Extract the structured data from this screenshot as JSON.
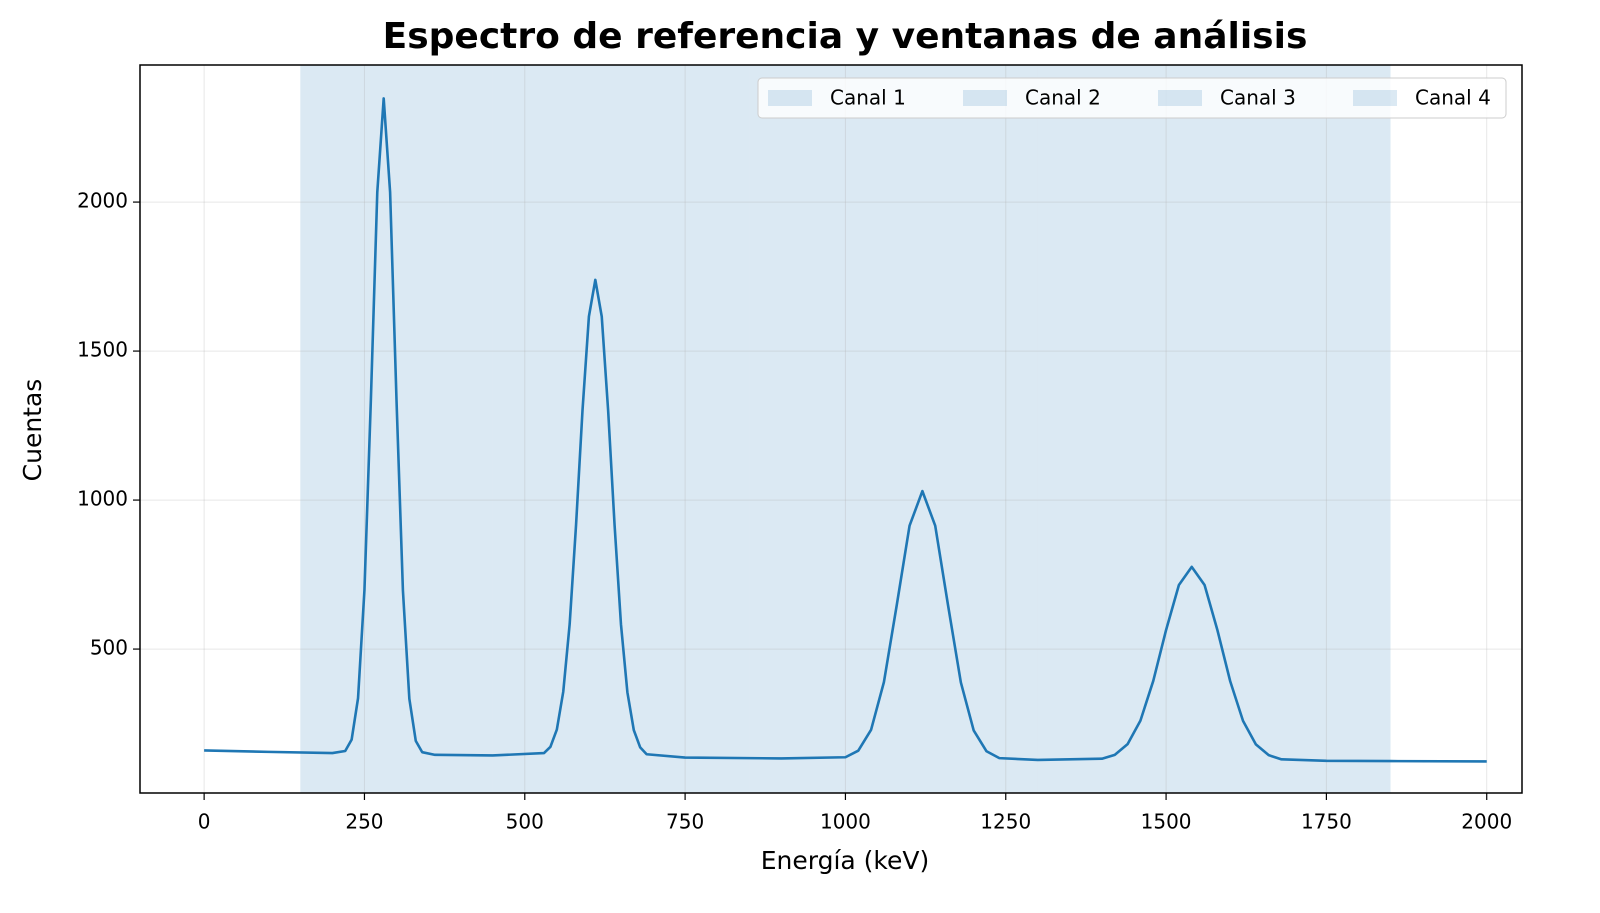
{
  "chart_data": {
    "type": "line",
    "title": "Espectro de referencia y ventanas de análisis",
    "x_label": "Energía (keV)",
    "y_label": "Cuentas",
    "x": [
      0,
      100,
      200,
      220,
      230,
      240,
      250,
      260,
      270,
      280,
      290,
      300,
      310,
      320,
      330,
      340,
      360,
      450,
      530,
      540,
      550,
      560,
      570,
      580,
      590,
      600,
      610,
      620,
      630,
      640,
      650,
      660,
      670,
      680,
      690,
      750,
      900,
      1000,
      1020,
      1040,
      1060,
      1080,
      1100,
      1120,
      1140,
      1160,
      1180,
      1200,
      1220,
      1240,
      1300,
      1400,
      1420,
      1440,
      1460,
      1480,
      1500,
      1520,
      1540,
      1560,
      1580,
      1600,
      1620,
      1640,
      1660,
      1680,
      1750,
      1850,
      2000
    ],
    "values": [
      160,
      155,
      151,
      158,
      196,
      335,
      698,
      1336,
      2033,
      2348,
      2033,
      1334,
      696,
      333,
      192,
      154,
      145,
      143,
      151,
      172,
      230,
      357,
      584,
      918,
      1301,
      1616,
      1739,
      1616,
      1300,
      917,
      583,
      355,
      228,
      170,
      147,
      136,
      133,
      137,
      159,
      229,
      389,
      647,
      914,
      1030,
      914,
      647,
      388,
      227,
      157,
      134,
      128,
      132,
      145,
      181,
      260,
      393,
      564,
      715,
      776,
      715,
      564,
      392,
      259,
      180,
      144,
      130,
      125,
      124,
      123
    ],
    "color": "#1f77b4",
    "spans": [
      {
        "name": "Canal 1",
        "start": 150,
        "end": 450
      },
      {
        "name": "Canal 2",
        "start": 450,
        "end": 850
      },
      {
        "name": "Canal 3",
        "start": 850,
        "end": 1300
      },
      {
        "name": "Canal 4",
        "start": 1300,
        "end": 1850
      }
    ],
    "span_color": "#1f77b4",
    "span_alpha": 0.16,
    "xlim": [
      -100,
      2055
    ],
    "ylim": [
      17,
      2460
    ],
    "xticks": [
      0,
      250,
      500,
      750,
      1000,
      1250,
      1500,
      1750,
      2000
    ],
    "yticks": [
      500,
      1000,
      1500,
      2000
    ],
    "grid": true,
    "legend": "upper right"
  }
}
